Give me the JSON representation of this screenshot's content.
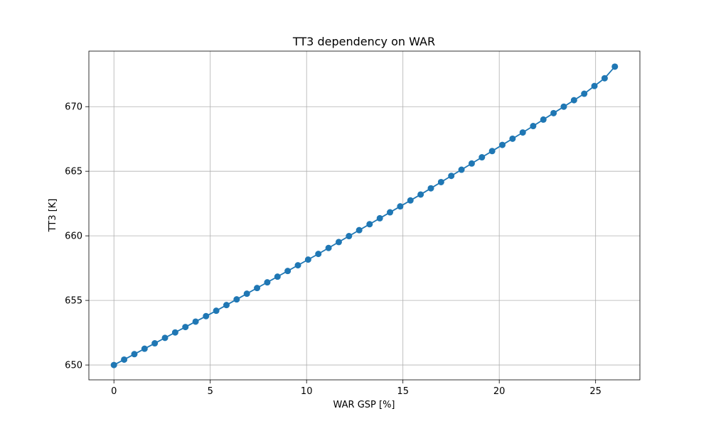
{
  "chart_data": {
    "type": "line",
    "title": "TT3 dependency on WAR",
    "xlabel": "WAR GSP [%]",
    "ylabel": "TT3 [K]",
    "xlim": [
      -1.3,
      27.3
    ],
    "ylim": [
      648.85,
      674.3
    ],
    "xticks": [
      0,
      5,
      10,
      15,
      20,
      25
    ],
    "xtick_labels": [
      "0",
      "5",
      "10",
      "15",
      "20",
      "25"
    ],
    "yticks": [
      650,
      655,
      660,
      665,
      670
    ],
    "ytick_labels": [
      "650",
      "655",
      "660",
      "665",
      "670"
    ],
    "grid": true,
    "marker": "circle",
    "color": "#1f77b4",
    "series": [
      {
        "x": [
          0,
          0.53,
          1.06,
          1.59,
          2.12,
          2.65,
          3.18,
          3.71,
          4.24,
          4.78,
          5.31,
          5.84,
          6.37,
          6.9,
          7.43,
          7.96,
          8.49,
          9.02,
          9.55,
          10.08,
          10.61,
          11.14,
          11.67,
          12.2,
          12.73,
          13.27,
          13.8,
          14.33,
          14.86,
          15.39,
          15.92,
          16.45,
          16.98,
          17.51,
          18.04,
          18.57,
          19.1,
          19.63,
          20.16,
          20.69,
          21.22,
          21.76,
          22.29,
          22.82,
          23.35,
          23.88,
          24.41,
          24.94,
          25.47,
          26.0
        ],
        "y": [
          650.0,
          650.42,
          650.84,
          651.26,
          651.68,
          652.1,
          652.52,
          652.94,
          653.36,
          653.78,
          654.2,
          654.64,
          655.08,
          655.52,
          655.96,
          656.4,
          656.84,
          657.28,
          657.72,
          658.16,
          658.6,
          659.06,
          659.52,
          659.98,
          660.44,
          660.9,
          661.36,
          661.82,
          662.28,
          662.74,
          663.2,
          663.68,
          664.16,
          664.64,
          665.12,
          665.6,
          666.08,
          666.56,
          667.04,
          667.52,
          668.0,
          668.5,
          669.0,
          669.5,
          670.0,
          670.5,
          671.0,
          671.6,
          672.2,
          673.1
        ]
      }
    ]
  }
}
